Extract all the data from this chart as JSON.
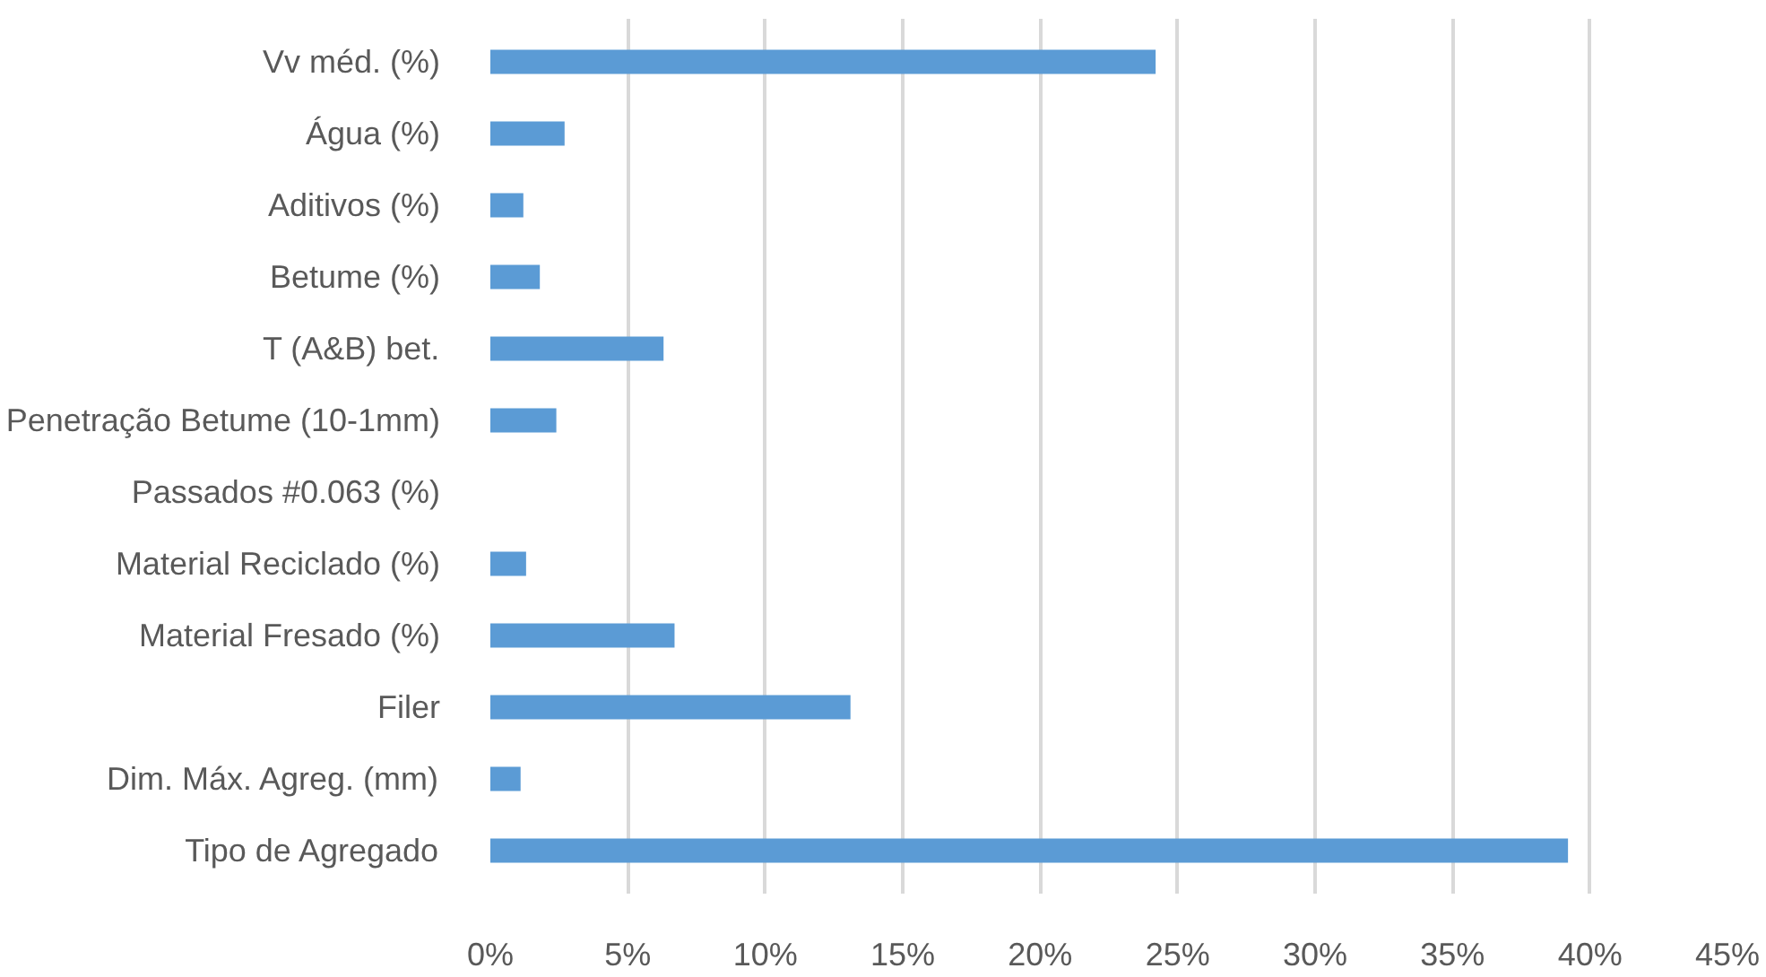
{
  "chart_data": {
    "type": "bar",
    "orientation": "horizontal",
    "categories": [
      "Vv méd. (%)",
      "Água (%)",
      "Aditivos (%)",
      "Betume (%)",
      "T (A&B) bet.",
      "Penetração Betume (10-1mm)",
      "Passados #0.063 (%)",
      "Material Reciclado (%)",
      "Material Fresado (%)",
      "Filer",
      "Dim. Máx. Agreg. (mm)",
      "Tipo de Agregado"
    ],
    "values": [
      24.2,
      2.7,
      1.2,
      1.8,
      6.3,
      2.4,
      0,
      1.3,
      6.7,
      13.1,
      1.1,
      39.2
    ],
    "color": "#5b9bd5",
    "xlim": [
      0,
      45
    ],
    "xticks": [
      {
        "value": 0,
        "label": "0%"
      },
      {
        "value": 5,
        "label": "5%"
      },
      {
        "value": 10,
        "label": "10%"
      },
      {
        "value": 15,
        "label": "15%"
      },
      {
        "value": 20,
        "label": "20%"
      },
      {
        "value": 25,
        "label": "25%"
      },
      {
        "value": 30,
        "label": "30%"
      },
      {
        "value": 35,
        "label": "35%"
      },
      {
        "value": 40,
        "label": "40%"
      },
      {
        "value": 45,
        "label": "45%"
      }
    ],
    "grid": "x"
  }
}
